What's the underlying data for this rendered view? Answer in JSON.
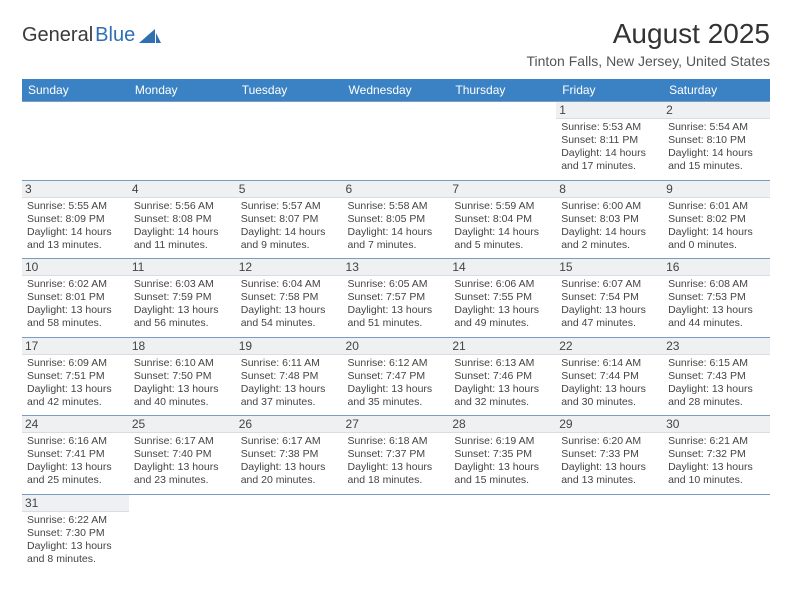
{
  "logo": {
    "text1": "General",
    "text2": "Blue"
  },
  "title": "August 2025",
  "location": "Tinton Falls, New Jersey, United States",
  "colors": {
    "header_bg": "#3b82c4",
    "header_text": "#ffffff",
    "border": "#7a9cc0",
    "daynum_bg": "#eef0f2",
    "logo_blue": "#2f6fb2"
  },
  "typography": {
    "title_fontsize": 28,
    "location_fontsize": 14,
    "header_fontsize": 12,
    "cell_fontsize": 10.5
  },
  "weekdays": [
    "Sunday",
    "Monday",
    "Tuesday",
    "Wednesday",
    "Thursday",
    "Friday",
    "Saturday"
  ],
  "weeks": [
    [
      {
        "day": "",
        "lines": [
          "",
          "",
          "",
          ""
        ]
      },
      {
        "day": "",
        "lines": [
          "",
          "",
          "",
          ""
        ]
      },
      {
        "day": "",
        "lines": [
          "",
          "",
          "",
          ""
        ]
      },
      {
        "day": "",
        "lines": [
          "",
          "",
          "",
          ""
        ]
      },
      {
        "day": "",
        "lines": [
          "",
          "",
          "",
          ""
        ]
      },
      {
        "day": "1",
        "lines": [
          "Sunrise: 5:53 AM",
          "Sunset: 8:11 PM",
          "Daylight: 14 hours",
          "and 17 minutes."
        ]
      },
      {
        "day": "2",
        "lines": [
          "Sunrise: 5:54 AM",
          "Sunset: 8:10 PM",
          "Daylight: 14 hours",
          "and 15 minutes."
        ]
      }
    ],
    [
      {
        "day": "3",
        "lines": [
          "Sunrise: 5:55 AM",
          "Sunset: 8:09 PM",
          "Daylight: 14 hours",
          "and 13 minutes."
        ]
      },
      {
        "day": "4",
        "lines": [
          "Sunrise: 5:56 AM",
          "Sunset: 8:08 PM",
          "Daylight: 14 hours",
          "and 11 minutes."
        ]
      },
      {
        "day": "5",
        "lines": [
          "Sunrise: 5:57 AM",
          "Sunset: 8:07 PM",
          "Daylight: 14 hours",
          "and 9 minutes."
        ]
      },
      {
        "day": "6",
        "lines": [
          "Sunrise: 5:58 AM",
          "Sunset: 8:05 PM",
          "Daylight: 14 hours",
          "and 7 minutes."
        ]
      },
      {
        "day": "7",
        "lines": [
          "Sunrise: 5:59 AM",
          "Sunset: 8:04 PM",
          "Daylight: 14 hours",
          "and 5 minutes."
        ]
      },
      {
        "day": "8",
        "lines": [
          "Sunrise: 6:00 AM",
          "Sunset: 8:03 PM",
          "Daylight: 14 hours",
          "and 2 minutes."
        ]
      },
      {
        "day": "9",
        "lines": [
          "Sunrise: 6:01 AM",
          "Sunset: 8:02 PM",
          "Daylight: 14 hours",
          "and 0 minutes."
        ]
      }
    ],
    [
      {
        "day": "10",
        "lines": [
          "Sunrise: 6:02 AM",
          "Sunset: 8:01 PM",
          "Daylight: 13 hours",
          "and 58 minutes."
        ]
      },
      {
        "day": "11",
        "lines": [
          "Sunrise: 6:03 AM",
          "Sunset: 7:59 PM",
          "Daylight: 13 hours",
          "and 56 minutes."
        ]
      },
      {
        "day": "12",
        "lines": [
          "Sunrise: 6:04 AM",
          "Sunset: 7:58 PM",
          "Daylight: 13 hours",
          "and 54 minutes."
        ]
      },
      {
        "day": "13",
        "lines": [
          "Sunrise: 6:05 AM",
          "Sunset: 7:57 PM",
          "Daylight: 13 hours",
          "and 51 minutes."
        ]
      },
      {
        "day": "14",
        "lines": [
          "Sunrise: 6:06 AM",
          "Sunset: 7:55 PM",
          "Daylight: 13 hours",
          "and 49 minutes."
        ]
      },
      {
        "day": "15",
        "lines": [
          "Sunrise: 6:07 AM",
          "Sunset: 7:54 PM",
          "Daylight: 13 hours",
          "and 47 minutes."
        ]
      },
      {
        "day": "16",
        "lines": [
          "Sunrise: 6:08 AM",
          "Sunset: 7:53 PM",
          "Daylight: 13 hours",
          "and 44 minutes."
        ]
      }
    ],
    [
      {
        "day": "17",
        "lines": [
          "Sunrise: 6:09 AM",
          "Sunset: 7:51 PM",
          "Daylight: 13 hours",
          "and 42 minutes."
        ]
      },
      {
        "day": "18",
        "lines": [
          "Sunrise: 6:10 AM",
          "Sunset: 7:50 PM",
          "Daylight: 13 hours",
          "and 40 minutes."
        ]
      },
      {
        "day": "19",
        "lines": [
          "Sunrise: 6:11 AM",
          "Sunset: 7:48 PM",
          "Daylight: 13 hours",
          "and 37 minutes."
        ]
      },
      {
        "day": "20",
        "lines": [
          "Sunrise: 6:12 AM",
          "Sunset: 7:47 PM",
          "Daylight: 13 hours",
          "and 35 minutes."
        ]
      },
      {
        "day": "21",
        "lines": [
          "Sunrise: 6:13 AM",
          "Sunset: 7:46 PM",
          "Daylight: 13 hours",
          "and 32 minutes."
        ]
      },
      {
        "day": "22",
        "lines": [
          "Sunrise: 6:14 AM",
          "Sunset: 7:44 PM",
          "Daylight: 13 hours",
          "and 30 minutes."
        ]
      },
      {
        "day": "23",
        "lines": [
          "Sunrise: 6:15 AM",
          "Sunset: 7:43 PM",
          "Daylight: 13 hours",
          "and 28 minutes."
        ]
      }
    ],
    [
      {
        "day": "24",
        "lines": [
          "Sunrise: 6:16 AM",
          "Sunset: 7:41 PM",
          "Daylight: 13 hours",
          "and 25 minutes."
        ]
      },
      {
        "day": "25",
        "lines": [
          "Sunrise: 6:17 AM",
          "Sunset: 7:40 PM",
          "Daylight: 13 hours",
          "and 23 minutes."
        ]
      },
      {
        "day": "26",
        "lines": [
          "Sunrise: 6:17 AM",
          "Sunset: 7:38 PM",
          "Daylight: 13 hours",
          "and 20 minutes."
        ]
      },
      {
        "day": "27",
        "lines": [
          "Sunrise: 6:18 AM",
          "Sunset: 7:37 PM",
          "Daylight: 13 hours",
          "and 18 minutes."
        ]
      },
      {
        "day": "28",
        "lines": [
          "Sunrise: 6:19 AM",
          "Sunset: 7:35 PM",
          "Daylight: 13 hours",
          "and 15 minutes."
        ]
      },
      {
        "day": "29",
        "lines": [
          "Sunrise: 6:20 AM",
          "Sunset: 7:33 PM",
          "Daylight: 13 hours",
          "and 13 minutes."
        ]
      },
      {
        "day": "30",
        "lines": [
          "Sunrise: 6:21 AM",
          "Sunset: 7:32 PM",
          "Daylight: 13 hours",
          "and 10 minutes."
        ]
      }
    ],
    [
      {
        "day": "31",
        "lines": [
          "Sunrise: 6:22 AM",
          "Sunset: 7:30 PM",
          "Daylight: 13 hours",
          "and 8 minutes."
        ]
      },
      {
        "day": "",
        "lines": [
          "",
          "",
          "",
          ""
        ]
      },
      {
        "day": "",
        "lines": [
          "",
          "",
          "",
          ""
        ]
      },
      {
        "day": "",
        "lines": [
          "",
          "",
          "",
          ""
        ]
      },
      {
        "day": "",
        "lines": [
          "",
          "",
          "",
          ""
        ]
      },
      {
        "day": "",
        "lines": [
          "",
          "",
          "",
          ""
        ]
      },
      {
        "day": "",
        "lines": [
          "",
          "",
          "",
          ""
        ]
      }
    ]
  ]
}
